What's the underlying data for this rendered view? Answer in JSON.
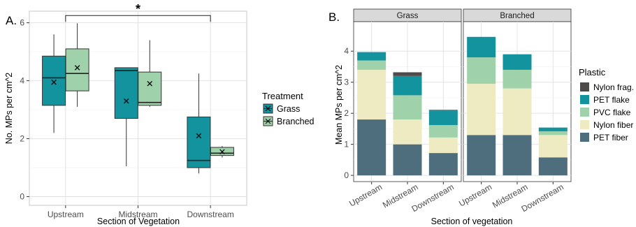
{
  "chart_data": [
    {
      "panel_label": "A.",
      "type": "box",
      "xlabel": "Section of Vegetation",
      "ylabel": "No. MPs per cm^2",
      "ylim": [
        -0.3,
        6.4
      ],
      "yticks": [
        0,
        2,
        4,
        6
      ],
      "categories": [
        "Upstream",
        "Midstream",
        "Downstream"
      ],
      "legend": {
        "title": "Treatment",
        "position": "right"
      },
      "grid": true,
      "series": [
        {
          "name": "Grass",
          "color": "#12939e",
          "boxes": [
            {
              "min": 2.2,
              "q1": 3.15,
              "median": 4.1,
              "q3": 4.85,
              "max": 5.6,
              "mean": 3.95
            },
            {
              "min": 1.05,
              "q1": 2.7,
              "median": 4.35,
              "q3": 4.45,
              "max": 4.45,
              "mean": 3.3
            },
            {
              "min": 0.8,
              "q1": 1.0,
              "median": 1.25,
              "q3": 2.75,
              "max": 4.25,
              "mean": 2.1
            }
          ]
        },
        {
          "name": "Branched",
          "color": "#9fd1aa",
          "boxes": [
            {
              "min": 3.1,
              "q1": 3.65,
              "median": 4.25,
              "q3": 5.1,
              "max": 5.98,
              "mean": 4.45
            },
            {
              "min": 3.1,
              "q1": 3.15,
              "median": 3.25,
              "q3": 4.3,
              "max": 5.4,
              "mean": 3.9
            },
            {
              "min": 1.35,
              "q1": 1.42,
              "median": 1.5,
              "q3": 1.7,
              "max": 1.75,
              "mean": 1.55
            }
          ]
        }
      ],
      "annotation": {
        "text": "*",
        "from": "Upstream",
        "to": "Downstream",
        "y": 6.25
      }
    },
    {
      "panel_label": "B.",
      "type": "stacked_bar",
      "xlabel": "Section of vegetation",
      "ylabel": "Mean MPs per cm^2",
      "ylim": [
        -0.2,
        4.95
      ],
      "yticks": [
        0,
        1,
        2,
        3,
        4
      ],
      "categories": [
        "Upstream",
        "Midstream",
        "Downstream"
      ],
      "legend": {
        "title": "Plastic",
        "position": "right"
      },
      "grid": true,
      "stack_order": [
        "PET fiber",
        "Nylon fiber",
        "PVC flake",
        "PET flake",
        "Nylon frag."
      ],
      "colors": {
        "PET fiber": "#4e6e7e",
        "Nylon fiber": "#eeeac1",
        "PVC flake": "#9fd1aa",
        "PET flake": "#12939e",
        "Nylon frag.": "#4f4a4a"
      },
      "facets": [
        {
          "name": "Grass",
          "series": [
            {
              "name": "PET fiber",
              "values": [
                1.8,
                1.0,
                0.72
              ]
            },
            {
              "name": "Nylon fiber",
              "values": [
                1.6,
                0.8,
                0.5
              ]
            },
            {
              "name": "PVC flake",
              "values": [
                0.3,
                0.78,
                0.4
              ]
            },
            {
              "name": "PET flake",
              "values": [
                0.27,
                0.62,
                0.47
              ]
            },
            {
              "name": "Nylon frag.",
              "values": [
                0,
                0.12,
                0.02
              ]
            }
          ]
        },
        {
          "name": "Branched",
          "series": [
            {
              "name": "PET fiber",
              "values": [
                1.3,
                1.3,
                0.58
              ]
            },
            {
              "name": "Nylon fiber",
              "values": [
                1.65,
                1.5,
                0.72
              ]
            },
            {
              "name": "PVC flake",
              "values": [
                0.85,
                0.6,
                0.12
              ]
            },
            {
              "name": "PET flake",
              "values": [
                0.66,
                0.5,
                0.12
              ]
            },
            {
              "name": "Nylon frag.",
              "values": [
                0,
                0,
                0
              ]
            }
          ]
        }
      ]
    }
  ]
}
